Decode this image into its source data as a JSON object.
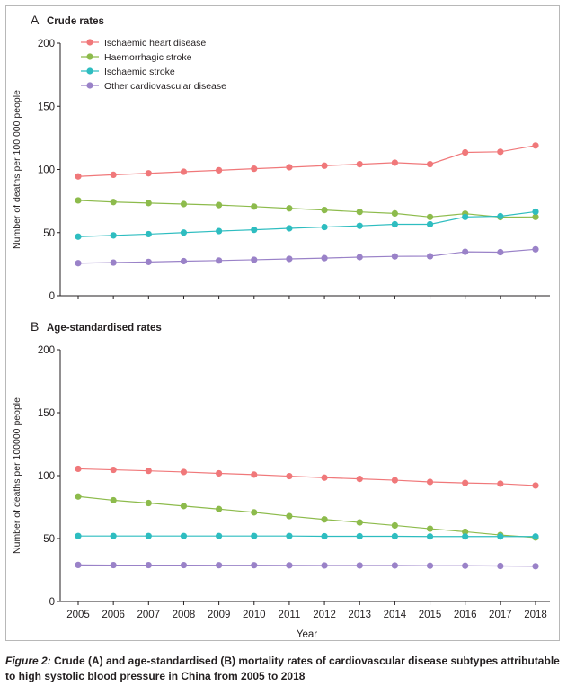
{
  "chart_data": [
    {
      "type": "line",
      "panel_letter": "A",
      "title": "Crude rates",
      "ylabel": "Number of deaths per 100 000 people",
      "xlabel": "",
      "ylim": [
        0,
        200
      ],
      "yticks": [
        0,
        50,
        100,
        150,
        200
      ],
      "legend": "top-left",
      "x": [
        "2005",
        "2006",
        "2007",
        "2008",
        "2009",
        "2010",
        "2011",
        "2012",
        "2013",
        "2014",
        "2015",
        "2016",
        "2017",
        "2018"
      ],
      "series": [
        {
          "name": "Ischaemic heart disease",
          "color": "#f0787a",
          "values": [
            94.5,
            95.8,
            97,
            98.2,
            99.4,
            100.6,
            101.8,
            103,
            104.2,
            105.4,
            104.2,
            113.5,
            114,
            119
          ]
        },
        {
          "name": "Haemorrhagic stroke",
          "color": "#8dbb4c",
          "values": [
            75.5,
            74.2,
            73.4,
            72.6,
            71.8,
            70.6,
            69.2,
            67.9,
            66.4,
            65.2,
            62.4,
            65,
            62.3,
            62.4
          ]
        },
        {
          "name": "Ischaemic stroke",
          "color": "#2ebdc0",
          "values": [
            46.8,
            47.8,
            48.8,
            50,
            51.2,
            52.2,
            53.4,
            54.4,
            55.4,
            56.6,
            56.6,
            62.4,
            63,
            66.6
          ]
        },
        {
          "name": "Other cardiovascular disease",
          "color": "#9a82c8",
          "values": [
            25.8,
            26.3,
            26.8,
            27.4,
            27.9,
            28.5,
            29.2,
            29.8,
            30.6,
            31.2,
            31.3,
            34.8,
            34.5,
            36.8
          ]
        }
      ]
    },
    {
      "type": "line",
      "panel_letter": "B",
      "title": "Age-standardised rates",
      "ylabel": "Number of deaths per 100000 people",
      "xlabel": "Year",
      "ylim": [
        0,
        200
      ],
      "yticks": [
        0,
        50,
        100,
        150,
        200
      ],
      "x": [
        "2005",
        "2006",
        "2007",
        "2008",
        "2009",
        "2010",
        "2011",
        "2012",
        "2013",
        "2014",
        "2015",
        "2016",
        "2017",
        "2018"
      ],
      "series": [
        {
          "name": "Ischaemic heart disease",
          "color": "#f0787a",
          "values": [
            105.4,
            104.6,
            103.8,
            102.9,
            101.8,
            100.8,
            99.6,
            98.4,
            97.4,
            96.4,
            95,
            94.2,
            93.6,
            92.2
          ]
        },
        {
          "name": "Haemorrhagic stroke",
          "color": "#8dbb4c",
          "values": [
            83.4,
            80.4,
            78.2,
            75.8,
            73.4,
            70.8,
            67.8,
            65.2,
            62.8,
            60.4,
            57.8,
            55.4,
            52.8,
            50.8
          ]
        },
        {
          "name": "Ischaemic stroke",
          "color": "#2ebdc0",
          "values": [
            52,
            52,
            52,
            52,
            52,
            52,
            52,
            51.8,
            51.8,
            51.8,
            51.6,
            51.6,
            51.6,
            51.6
          ]
        },
        {
          "name": "Other cardiovascular disease",
          "color": "#9a82c8",
          "values": [
            29,
            28.9,
            28.9,
            28.9,
            28.8,
            28.8,
            28.7,
            28.6,
            28.6,
            28.6,
            28.4,
            28.4,
            28.2,
            28
          ]
        }
      ]
    }
  ],
  "caption": {
    "label": "Figure 2:",
    "text": " Crude (A) and age-standardised (B) mortality rates of cardiovascular disease subtypes attributable to high systolic blood pressure in China from 2005 to 2018"
  }
}
